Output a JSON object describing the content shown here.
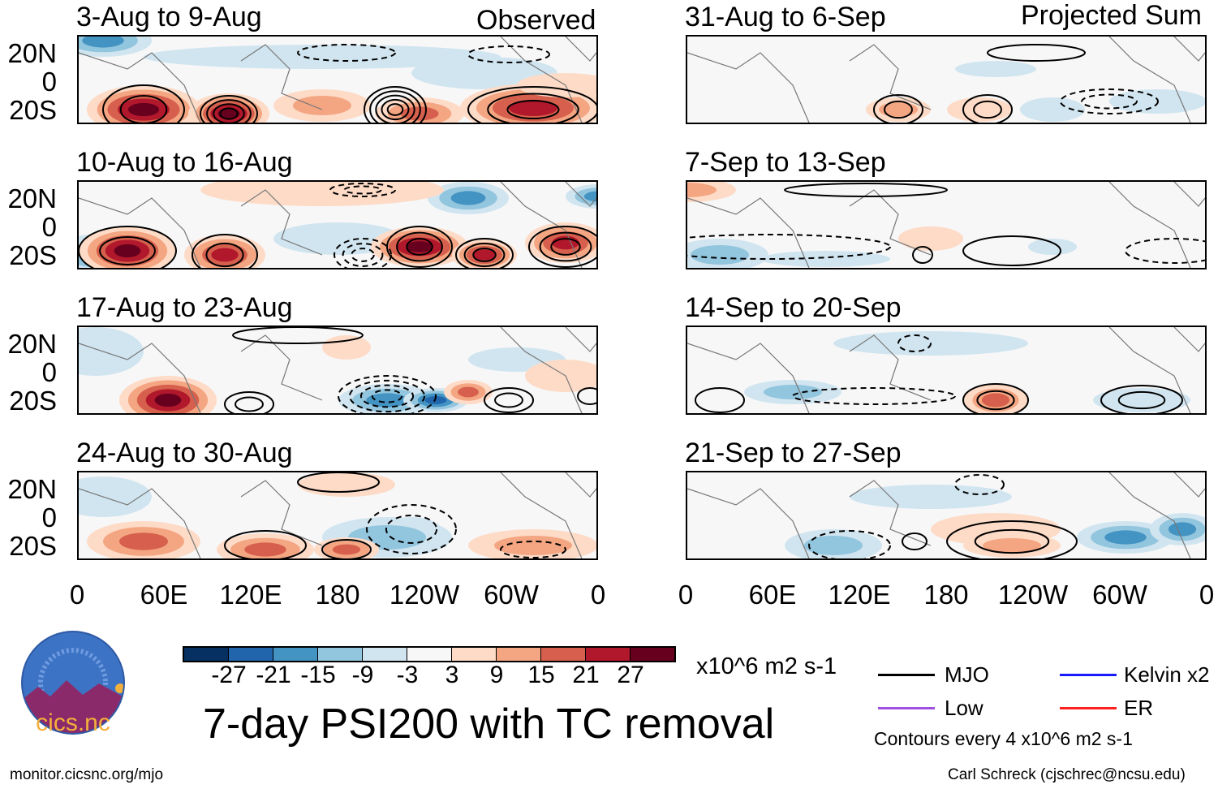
{
  "left_header": "Observed",
  "right_header": "Projected Sum",
  "panels_left": [
    "3-Aug to 9-Aug",
    "10-Aug to 16-Aug",
    "17-Aug to 23-Aug",
    "24-Aug to 30-Aug"
  ],
  "panels_right": [
    "31-Aug to 6-Sep",
    "7-Sep to 13-Sep",
    "14-Sep to 20-Sep",
    "21-Sep to 27-Sep"
  ],
  "lat_labels": [
    "20N",
    "0",
    "20S"
  ],
  "lon_labels": [
    "0",
    "60E",
    "120E",
    "180",
    "120W",
    "60W",
    "0"
  ],
  "colorbar": {
    "colors": [
      "#053061",
      "#2166ac",
      "#4393c3",
      "#92c5de",
      "#d1e5f0",
      "#f7f7f7",
      "#fddbc7",
      "#f4a582",
      "#d6604d",
      "#b2182b",
      "#67001f"
    ],
    "ticks": [
      "-27",
      "-21",
      "-15",
      "-9",
      "-3",
      "3",
      "9",
      "15",
      "21",
      "27"
    ],
    "units": "x10^6 m2 s-1"
  },
  "title": "7-day PSI200 with TC removal",
  "legend": {
    "items": [
      {
        "label": "MJO",
        "color": "#000000"
      },
      {
        "label": "Kelvin x2",
        "color": "#1a1aff"
      },
      {
        "label": "Low",
        "color": "#a050e0"
      },
      {
        "label": "ER",
        "color": "#ff2020"
      }
    ],
    "note": "Contours every 4 x10^6 m2 s-1"
  },
  "logo": {
    "text": "cics.nc",
    "ring": "Cooperative Institute for Climate and Satellites"
  },
  "footer_left": "monitor.cicsnc.org/mjo",
  "footer_right": "Carl Schreck (cjschrec@ncsu.edu)"
}
